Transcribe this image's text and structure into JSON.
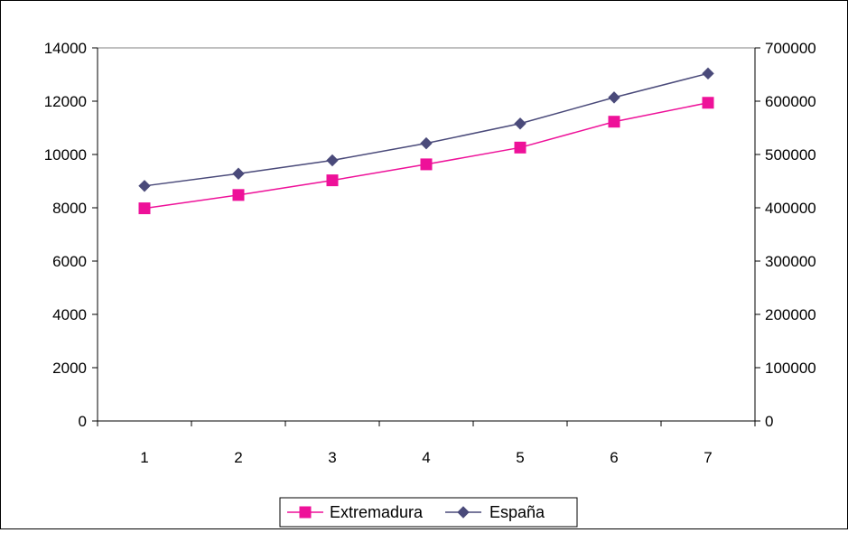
{
  "chart_data": {
    "type": "line",
    "title": "",
    "xlabel": "",
    "ylabel": "",
    "x": [
      "1",
      "2",
      "3",
      "4",
      "5",
      "6",
      "7"
    ],
    "y_left_lim": [
      0,
      14000
    ],
    "y_left_ticks": [
      "0",
      "2000",
      "4000",
      "6000",
      "8000",
      "10000",
      "12000",
      "14000"
    ],
    "y_right_lim": [
      0,
      700000
    ],
    "y_right_ticks": [
      "0",
      "100000",
      "200000",
      "300000",
      "400000",
      "500000",
      "600000",
      "700000"
    ],
    "grid": false,
    "legend_position": "bottom",
    "series": [
      {
        "name": "Extremadura",
        "axis": "left",
        "color": "#ee1199",
        "marker": "square",
        "values": [
          7980,
          8480,
          9030,
          9630,
          10260,
          11230,
          11940
        ]
      },
      {
        "name": "España",
        "axis": "right",
        "color": "#4a4a7a",
        "marker": "diamond",
        "values": [
          441000,
          464000,
          489000,
          521000,
          558000,
          607000,
          652000
        ]
      }
    ]
  }
}
